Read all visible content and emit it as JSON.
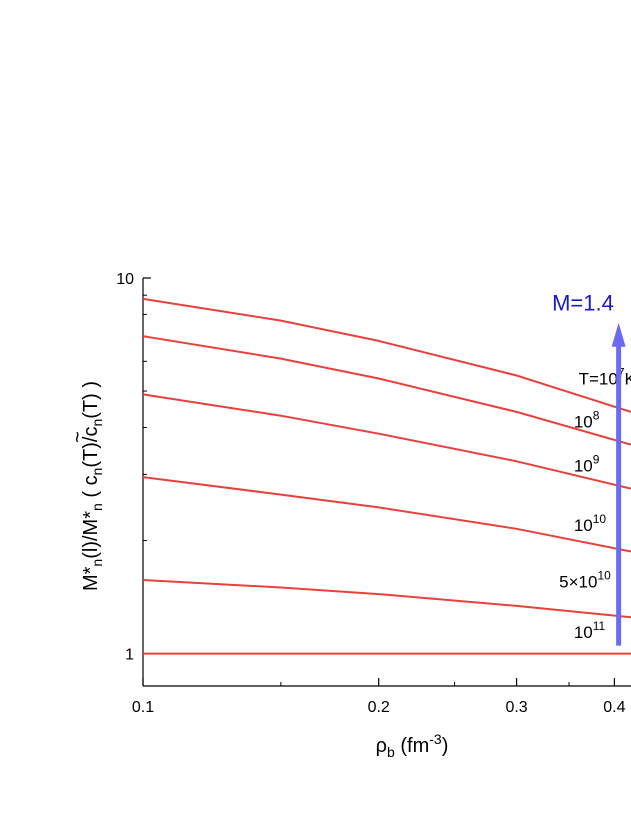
{
  "chart_data": {
    "type": "line",
    "xscale": "log",
    "yscale": "log",
    "xlim": [
      0.1,
      0.42
    ],
    "ylim": [
      0.82,
      10
    ],
    "xlabel": {
      "base": "ρ",
      "sub": "b",
      "unit_pre": " (fm",
      "sup": "-3",
      "unit_post": ")"
    },
    "ylabel": {
      "p1": "M*",
      "p1_sub": "n",
      "p2": "(l)/M*",
      "p2_sub": "n",
      "p3": " ( c",
      "p3_sub": "n",
      "p4": "(T)/c",
      "p4_sub": "n",
      "p5": "(T) )",
      "tilde": "~"
    },
    "xticks": [
      {
        "value": 0.1,
        "label": "0.1"
      },
      {
        "value": 0.2,
        "label": "0.2"
      },
      {
        "value": 0.3,
        "label": "0.3"
      },
      {
        "value": 0.4,
        "label": "0.4"
      }
    ],
    "xticks_minor": [
      0.15,
      0.25,
      0.35
    ],
    "yticks": [
      {
        "value": 1,
        "label": "1"
      },
      {
        "value": 10,
        "label": "10"
      }
    ],
    "yticks_minor": [
      2,
      3,
      4,
      5,
      6,
      7,
      8,
      9
    ],
    "line_color": "#e8413c",
    "series": [
      {
        "name_base": "T=10",
        "name_sup": "7",
        "name_post": "K",
        "label_x": 0.36,
        "label_y": 5.2,
        "x": [
          0.1,
          0.15,
          0.2,
          0.3,
          0.42
        ],
        "y": [
          8.8,
          7.7,
          6.8,
          5.5,
          4.4
        ]
      },
      {
        "name_base": "10",
        "name_sup": "8",
        "name_post": "",
        "label_x": 0.355,
        "label_y": 4.0,
        "x": [
          0.1,
          0.15,
          0.2,
          0.3,
          0.42
        ],
        "y": [
          7.0,
          6.1,
          5.4,
          4.4,
          3.6
        ]
      },
      {
        "name_base": "10",
        "name_sup": "9",
        "name_post": "",
        "label_x": 0.355,
        "label_y": 3.05,
        "x": [
          0.1,
          0.15,
          0.2,
          0.3,
          0.42
        ],
        "y": [
          4.9,
          4.3,
          3.85,
          3.25,
          2.75
        ]
      },
      {
        "name_base": "10",
        "name_sup": "10",
        "name_post": "",
        "label_x": 0.355,
        "label_y": 2.12,
        "x": [
          0.1,
          0.15,
          0.2,
          0.3,
          0.42
        ],
        "y": [
          2.95,
          2.65,
          2.45,
          2.15,
          1.87
        ]
      },
      {
        "name_base": "5×10",
        "name_sup": "10",
        "name_post": "",
        "label_x": 0.34,
        "label_y": 1.5,
        "x": [
          0.1,
          0.15,
          0.2,
          0.3,
          0.42
        ],
        "y": [
          1.57,
          1.5,
          1.44,
          1.34,
          1.25
        ]
      },
      {
        "name_base": "10",
        "name_sup": "11",
        "name_post": "",
        "label_x": 0.355,
        "label_y": 1.1,
        "x": [
          0.1,
          0.42
        ],
        "y": [
          1.0,
          1.0
        ]
      }
    ],
    "annotation": {
      "text": "M=1.4",
      "color": "#1919c8",
      "arrow_color": "#6b6bf2",
      "arrow_x": 0.405,
      "arrow_from": 1.05,
      "arrow_to": 7.6,
      "text_x": 0.333,
      "text_y": 8.2
    }
  }
}
